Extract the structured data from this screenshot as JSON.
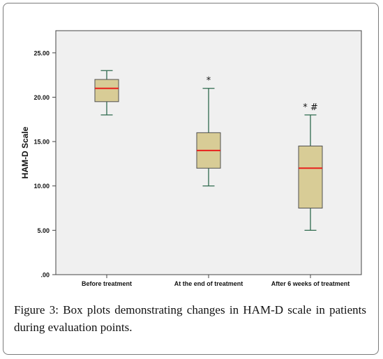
{
  "chart_data": {
    "type": "boxplot",
    "title": "",
    "xlabel": "",
    "ylabel": "HAM-D Scale",
    "ylim": [
      0,
      27.5
    ],
    "yticks": [
      ".00",
      "5.00",
      "10.00",
      "15.00",
      "20.00",
      "25.00"
    ],
    "ytick_values": [
      0,
      5,
      10,
      15,
      20,
      25
    ],
    "grid": false,
    "categories": [
      "Before treatment",
      "At the end of treatment",
      "After 6 weeks of treatment"
    ],
    "boxes": [
      {
        "min": 18,
        "q1": 19.5,
        "median": 21,
        "q3": 22,
        "max": 23,
        "marker": ""
      },
      {
        "min": 10,
        "q1": 12,
        "median": 14,
        "q3": 16,
        "max": 21,
        "marker": "*"
      },
      {
        "min": 5,
        "q1": 7.5,
        "median": 12,
        "q3": 14.5,
        "max": 18,
        "marker": "* #"
      }
    ],
    "colors": {
      "box_fill": "#d8cc96",
      "box_stroke": "#4f4f4f",
      "whisker": "#2e6a4e",
      "median": "#e8201c",
      "plot_bg": "#f0f0f0"
    }
  },
  "caption": {
    "label": "Figure 3:",
    "text": " Box plots demonstrating changes in HAM-D scale in patients during evaluation points."
  }
}
